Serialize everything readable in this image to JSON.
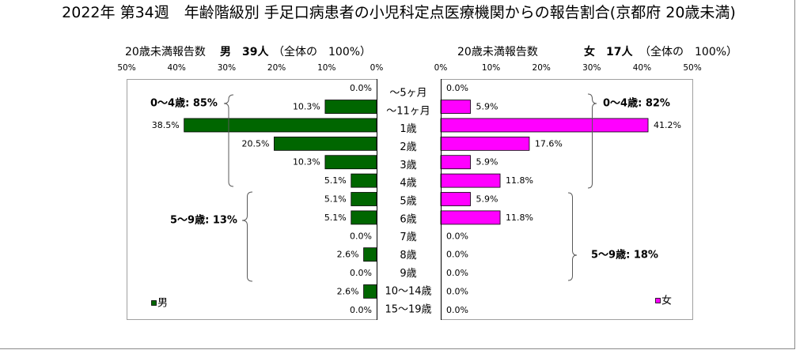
{
  "chart_data": {
    "type": "bar",
    "orientation": "horizontal",
    "title": "2022年 第34週　年齢階級別 手足口病患者の小児科定点医療機関からの報告割合(京都府 20歳未満)",
    "categories": [
      "～5ヶ月",
      "～11ヶ月",
      "1歳",
      "2歳",
      "3歳",
      "4歳",
      "5歳",
      "6歳",
      "7歳",
      "8歳",
      "9歳",
      "10～14歳",
      "15～19歳"
    ],
    "xlim": [
      0,
      50
    ],
    "xticks": [
      0,
      10,
      20,
      30,
      40,
      50
    ],
    "xtick_labels": [
      "0%",
      "10%",
      "20%",
      "30%",
      "40%",
      "50%"
    ],
    "grid": false,
    "series": [
      {
        "name": "男",
        "color": "#006600",
        "legend_position": "bottom-left",
        "header": {
          "caption": "20歳未満報告数",
          "count": "男　39人",
          "share": "（全体の　100%）"
        },
        "values": [
          0.0,
          10.3,
          38.5,
          20.5,
          10.3,
          5.1,
          5.1,
          5.1,
          0.0,
          2.6,
          0.0,
          2.6,
          0.0
        ],
        "value_labels": [
          "0.0%",
          "10.3%",
          "38.5%",
          "20.5%",
          "10.3%",
          "5.1%",
          "5.1%",
          "5.1%",
          "0.0%",
          "2.6%",
          "0.0%",
          "2.6%",
          "0.0%"
        ],
        "group_annotations": [
          "0～4歳: 85%",
          "5～9歳: 13%"
        ]
      },
      {
        "name": "女",
        "color": "#FF00FF",
        "legend_position": "bottom-right",
        "header": {
          "caption": "20歳未満報告数",
          "count": "女　17人",
          "share": "（全体の　100%）"
        },
        "values": [
          0.0,
          5.9,
          41.2,
          17.6,
          5.9,
          11.8,
          5.9,
          11.8,
          0.0,
          0.0,
          0.0,
          0.0,
          0.0
        ],
        "value_labels": [
          "0.0%",
          "5.9%",
          "41.2%",
          "17.6%",
          "5.9%",
          "11.8%",
          "5.9%",
          "11.8%",
          "0.0%",
          "0.0%",
          "0.0%",
          "0.0%",
          "0.0%"
        ],
        "group_annotations": [
          "0～4歳: 82%",
          "5～9歳: 18%"
        ]
      }
    ]
  }
}
